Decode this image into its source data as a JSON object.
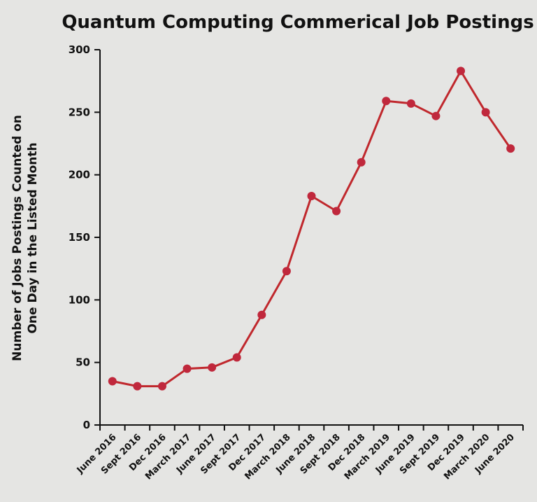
{
  "colors": {
    "background": "#e5e5e3",
    "series": "#c0282d",
    "marker": "#c0283c",
    "axis": "#111111"
  },
  "chart_data": {
    "type": "line",
    "title": "Quantum Computing Commerical Job Postings",
    "xlabel": "",
    "ylabel_lines": [
      "Number of Jobs Postings Counted on",
      "One Day in the Listed Month"
    ],
    "ylim": [
      0,
      300
    ],
    "yticks": [
      0,
      50,
      100,
      150,
      200,
      250,
      300
    ],
    "grid": false,
    "categories": [
      "June 2016",
      "Sept 2016",
      "Dec 2016",
      "March 2017",
      "June 2017",
      "Sept 2017",
      "Dec 2017",
      "March 2018",
      "June 2018",
      "Sept 2018",
      "Dec 2018",
      "March 2019",
      "June 2019",
      "Sept 2019",
      "Dec 2019",
      "March 2020",
      "June 2020"
    ],
    "series": [
      {
        "name": "Job Postings",
        "values": [
          35,
          31,
          31,
          45,
          46,
          54,
          88,
          123,
          183,
          171,
          210,
          259,
          257,
          247,
          283,
          250,
          221
        ]
      }
    ]
  }
}
